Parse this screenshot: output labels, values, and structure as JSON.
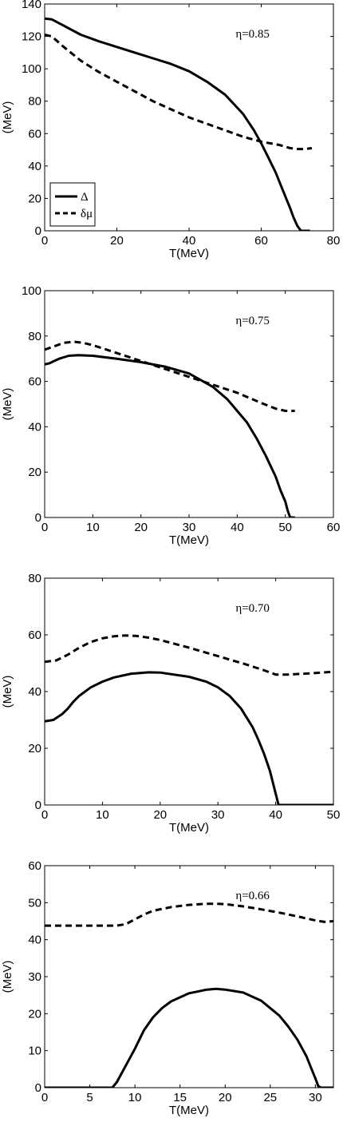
{
  "chart_data": [
    {
      "type": "line",
      "annotation": "η=0.85",
      "xlabel": "T(MeV)",
      "ylabel": "(MeV)",
      "xlim": [
        0,
        80
      ],
      "ylim": [
        0,
        140
      ],
      "xticks": [
        0,
        20,
        40,
        60,
        80
      ],
      "yticks": [
        0,
        20,
        40,
        60,
        80,
        100,
        120,
        140
      ],
      "grid": false,
      "legend": {
        "position": "bottom-left",
        "entries": [
          "Δ",
          "δμ"
        ]
      },
      "series": [
        {
          "name": "Δ",
          "style": "solid",
          "x": [
            0,
            2,
            5,
            10,
            15,
            20,
            25,
            30,
            35,
            40,
            45,
            50,
            55,
            58,
            60,
            62,
            64,
            66,
            68,
            69,
            70,
            71,
            72,
            73.5
          ],
          "y": [
            131,
            130.5,
            127,
            121,
            117,
            113.5,
            110,
            106.5,
            103,
            98.5,
            92,
            84,
            72,
            62,
            54,
            45,
            36,
            25,
            14,
            8,
            3,
            0,
            0,
            0
          ]
        },
        {
          "name": "δμ",
          "style": "dashed",
          "x": [
            0,
            2,
            5,
            10,
            15,
            20,
            25,
            30,
            35,
            40,
            45,
            50,
            55,
            60,
            65,
            68,
            70,
            72,
            74
          ],
          "y": [
            121,
            120,
            114,
            105,
            98,
            92,
            86,
            80,
            75,
            70,
            66,
            62,
            58,
            55,
            53,
            51,
            50.5,
            50.5,
            51
          ]
        }
      ]
    },
    {
      "type": "line",
      "annotation": "η=0.75",
      "xlabel": "T(MeV)",
      "ylabel": "(MeV)",
      "xlim": [
        0,
        60
      ],
      "ylim": [
        0,
        100
      ],
      "xticks": [
        0,
        10,
        20,
        30,
        40,
        50,
        60
      ],
      "yticks": [
        0,
        20,
        40,
        60,
        80,
        100
      ],
      "grid": false,
      "series": [
        {
          "name": "Δ",
          "style": "solid",
          "x": [
            0,
            1,
            3,
            5,
            7,
            10,
            15,
            20,
            25,
            30,
            35,
            38,
            40,
            42,
            44,
            46,
            48,
            49,
            50,
            50.5,
            51,
            52
          ],
          "y": [
            67.5,
            68,
            70,
            71.3,
            71.6,
            71.3,
            70,
            68.5,
            66.5,
            63.5,
            57.5,
            52,
            47,
            42,
            35,
            27,
            18,
            12,
            7,
            3,
            0,
            0
          ]
        },
        {
          "name": "δμ",
          "style": "dashed",
          "x": [
            0,
            2,
            4,
            6,
            8,
            10,
            15,
            20,
            25,
            30,
            35,
            40,
            45,
            48,
            50,
            52
          ],
          "y": [
            74,
            75.5,
            77,
            77.5,
            77,
            76,
            72.5,
            69,
            65.5,
            62,
            58.5,
            55,
            50.5,
            48,
            47,
            47
          ]
        }
      ]
    },
    {
      "type": "line",
      "annotation": "η=0.70",
      "xlabel": "T(MeV)",
      "ylabel": "(MeV)",
      "xlim": [
        0,
        50
      ],
      "ylim": [
        0,
        80
      ],
      "xticks": [
        0,
        10,
        20,
        30,
        40,
        50
      ],
      "yticks": [
        0,
        20,
        40,
        60,
        80
      ],
      "grid": false,
      "series": [
        {
          "name": "Δ",
          "style": "solid",
          "x": [
            0,
            1.5,
            3,
            4,
            5,
            6,
            8,
            10,
            12,
            15,
            18,
            20,
            25,
            28,
            30,
            32,
            34,
            36,
            37,
            38,
            39,
            39.5,
            40,
            40.5,
            41,
            45,
            50
          ],
          "y": [
            29.5,
            30,
            32,
            34,
            36.5,
            38.5,
            41.5,
            43.5,
            45,
            46.3,
            46.8,
            46.7,
            45.2,
            43.5,
            41.5,
            38.5,
            34,
            27.5,
            23,
            18,
            12,
            8,
            4,
            0,
            0,
            0,
            0
          ]
        },
        {
          "name": "δμ",
          "style": "dashed",
          "x": [
            0,
            2,
            4,
            6,
            8,
            10,
            12,
            14,
            16,
            18,
            20,
            25,
            30,
            35,
            38,
            40,
            42,
            45,
            48,
            50
          ],
          "y": [
            50.5,
            51,
            53,
            55.5,
            57.5,
            58.8,
            59.5,
            59.8,
            59.6,
            59,
            58.2,
            55.5,
            52.5,
            49.5,
            47.5,
            46,
            46,
            46.3,
            46.7,
            47
          ]
        }
      ]
    },
    {
      "type": "line",
      "annotation": "η=0.66",
      "xlabel": "T(MeV)",
      "ylabel": "(MeV)",
      "xlim": [
        0,
        32
      ],
      "ylim": [
        0,
        60
      ],
      "xticks": [
        0,
        5,
        10,
        15,
        20,
        25,
        30
      ],
      "yticks": [
        0,
        10,
        20,
        30,
        40,
        50,
        60
      ],
      "grid": false,
      "series": [
        {
          "name": "Δ",
          "style": "solid",
          "x": [
            0,
            4,
            7.5,
            8,
            9,
            10,
            11,
            12,
            13,
            14,
            16,
            18,
            19,
            20,
            22,
            24,
            26,
            27,
            28,
            29,
            29.5,
            30,
            30.3,
            30.6,
            31,
            32
          ],
          "y": [
            0,
            0,
            0,
            1.5,
            6,
            10.5,
            15.5,
            19,
            21.5,
            23.3,
            25.5,
            26.5,
            26.7,
            26.5,
            25.7,
            23.5,
            19.5,
            16.5,
            13,
            8.5,
            5.5,
            2.5,
            0.5,
            0,
            0,
            0
          ]
        },
        {
          "name": "δμ",
          "style": "dashed",
          "x": [
            0,
            2,
            4,
            6,
            8,
            9,
            10,
            11,
            12,
            14,
            16,
            18,
            19,
            20,
            22,
            24,
            26,
            28,
            30,
            31,
            32
          ],
          "y": [
            43.8,
            43.8,
            43.8,
            43.8,
            43.8,
            44.2,
            45.5,
            46.8,
            47.8,
            48.8,
            49.4,
            49.7,
            49.7,
            49.6,
            49,
            48.2,
            47.3,
            46.3,
            45.2,
            44.8,
            45
          ]
        }
      ]
    }
  ]
}
